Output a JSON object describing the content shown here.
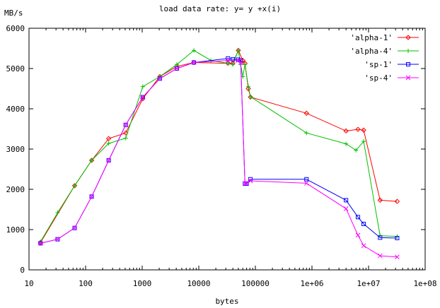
{
  "chart_data": {
    "type": "line",
    "title": "load data rate: y= y +x(i)",
    "xlabel": "bytes",
    "ylabel": "MB/s",
    "x_scale": "log",
    "xlim": [
      10,
      100000000
    ],
    "ylim": [
      0,
      6000
    ],
    "grid": false,
    "legend": "top-right",
    "x_ticks": [
      {
        "value": 10,
        "label": "10"
      },
      {
        "value": 100,
        "label": "100"
      },
      {
        "value": 1000,
        "label": "1000"
      },
      {
        "value": 10000,
        "label": "10000"
      },
      {
        "value": 100000,
        "label": "100000"
      },
      {
        "value": 1000000,
        "label": "1e+06"
      },
      {
        "value": 10000000,
        "label": "1e+07"
      },
      {
        "value": 100000000,
        "label": "1e+08"
      }
    ],
    "y_ticks": [
      {
        "value": 0,
        "label": "0"
      },
      {
        "value": 1000,
        "label": "1000"
      },
      {
        "value": 2000,
        "label": "2000"
      },
      {
        "value": 3000,
        "label": "3000"
      },
      {
        "value": 4000,
        "label": "4000"
      },
      {
        "value": 5000,
        "label": "5000"
      },
      {
        "value": 6000,
        "label": "6000"
      }
    ],
    "series": [
      {
        "name": "'alpha-1'",
        "color": "#ff0000",
        "marker": "diamond",
        "points": [
          [
            16,
            680
          ],
          [
            64,
            2090
          ],
          [
            128,
            2720
          ],
          [
            256,
            3260
          ],
          [
            512,
            3400
          ],
          [
            1024,
            4250
          ],
          [
            2048,
            4800
          ],
          [
            4096,
            5050
          ],
          [
            8192,
            5150
          ],
          [
            32768,
            5130
          ],
          [
            40000,
            5130
          ],
          [
            50000,
            5450
          ],
          [
            60000,
            5200
          ],
          [
            65536,
            5130
          ],
          [
            75000,
            4500
          ],
          [
            81920,
            4290
          ],
          [
            800000,
            3890
          ],
          [
            4000000,
            3450
          ],
          [
            6500000,
            3490
          ],
          [
            8192000,
            3470
          ],
          [
            16000000,
            1730
          ],
          [
            32000000,
            1700
          ]
        ]
      },
      {
        "name": "'alpha-4'",
        "color": "#00c000",
        "marker": "plus",
        "points": [
          [
            16,
            700
          ],
          [
            32,
            1420
          ],
          [
            64,
            2090
          ],
          [
            128,
            2720
          ],
          [
            256,
            3140
          ],
          [
            512,
            3270
          ],
          [
            1024,
            4550
          ],
          [
            2048,
            4800
          ],
          [
            4096,
            5100
          ],
          [
            8192,
            5450
          ],
          [
            16384,
            5200
          ],
          [
            32768,
            5130
          ],
          [
            40000,
            5100
          ],
          [
            50000,
            5450
          ],
          [
            55000,
            5100
          ],
          [
            60000,
            4800
          ],
          [
            65536,
            5100
          ],
          [
            75000,
            4550
          ],
          [
            81920,
            4300
          ],
          [
            800000,
            3400
          ],
          [
            4000000,
            3130
          ],
          [
            6000000,
            2970
          ],
          [
            8192000,
            3190
          ],
          [
            16000000,
            850
          ],
          [
            32000000,
            830
          ]
        ]
      },
      {
        "name": "'sp-1'",
        "color": "#0000ff",
        "marker": "square",
        "points": [
          [
            16,
            660
          ],
          [
            32,
            760
          ],
          [
            64,
            1040
          ],
          [
            128,
            1820
          ],
          [
            256,
            2720
          ],
          [
            512,
            3600
          ],
          [
            1024,
            4290
          ],
          [
            2048,
            4750
          ],
          [
            4096,
            5000
          ],
          [
            8192,
            5150
          ],
          [
            32768,
            5250
          ],
          [
            40000,
            5230
          ],
          [
            50000,
            5220
          ],
          [
            55000,
            5200
          ],
          [
            65536,
            2140
          ],
          [
            70000,
            2140
          ],
          [
            81920,
            2250
          ],
          [
            800000,
            2250
          ],
          [
            4000000,
            1730
          ],
          [
            6500000,
            1310
          ],
          [
            8192000,
            1140
          ],
          [
            16000000,
            800
          ],
          [
            32000000,
            790
          ]
        ]
      },
      {
        "name": "'sp-4'",
        "color": "#ff00ff",
        "marker": "cross",
        "points": [
          [
            16,
            660
          ],
          [
            32,
            760
          ],
          [
            64,
            1040
          ],
          [
            128,
            1820
          ],
          [
            256,
            2720
          ],
          [
            512,
            3600
          ],
          [
            1024,
            4290
          ],
          [
            2048,
            4750
          ],
          [
            4096,
            5000
          ],
          [
            8192,
            5150
          ],
          [
            32768,
            5200
          ],
          [
            50000,
            5200
          ],
          [
            55000,
            5150
          ],
          [
            65536,
            2150
          ],
          [
            70000,
            2150
          ],
          [
            81920,
            2210
          ],
          [
            800000,
            2150
          ],
          [
            4000000,
            1520
          ],
          [
            6500000,
            860
          ],
          [
            8192000,
            600
          ],
          [
            16000000,
            350
          ],
          [
            32000000,
            320
          ]
        ]
      }
    ]
  }
}
